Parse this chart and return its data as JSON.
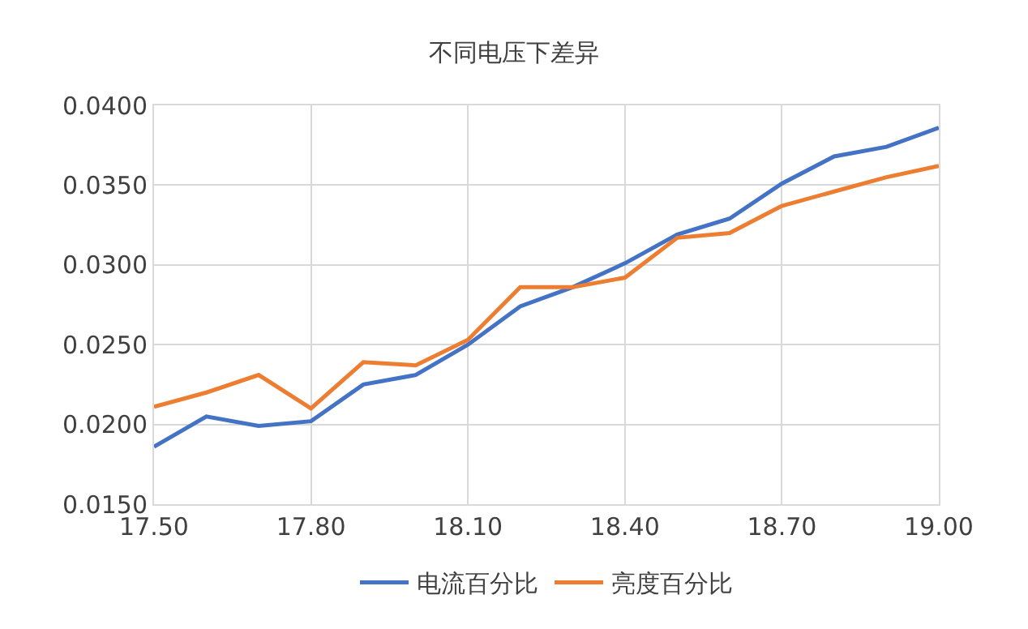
{
  "chart_data": {
    "type": "line",
    "title": "不同电压下差异",
    "x": [
      17.5,
      17.6,
      17.7,
      17.8,
      17.9,
      18.0,
      18.1,
      18.2,
      18.3,
      18.4,
      18.5,
      18.6,
      18.7,
      18.8,
      18.9,
      19.0
    ],
    "series": [
      {
        "name": "电流百分比",
        "color": "#4472c4",
        "values": [
          0.0186,
          0.0205,
          0.0199,
          0.0202,
          0.0225,
          0.0231,
          0.025,
          0.0274,
          0.0286,
          0.0301,
          0.0319,
          0.0329,
          0.0351,
          0.0368,
          0.0374,
          0.0386
        ]
      },
      {
        "name": "亮度百分比",
        "color": "#ed7d31",
        "values": [
          0.0211,
          0.022,
          0.0231,
          0.021,
          0.0239,
          0.0237,
          0.0253,
          0.0286,
          0.0286,
          0.0292,
          0.0317,
          0.032,
          0.0337,
          0.0346,
          0.0355,
          0.0362
        ]
      }
    ],
    "xlim": [
      17.5,
      19.0
    ],
    "xticks": [
      {
        "value": 17.5,
        "label": "17.50"
      },
      {
        "value": 17.8,
        "label": "17.80"
      },
      {
        "value": 18.1,
        "label": "18.10"
      },
      {
        "value": 18.4,
        "label": "18.40"
      },
      {
        "value": 18.7,
        "label": "18.70"
      },
      {
        "value": 19.0,
        "label": "19.00"
      }
    ],
    "ylim": [
      0.015,
      0.04
    ],
    "yticks": [
      {
        "value": 0.015,
        "label": "0.0150"
      },
      {
        "value": 0.02,
        "label": "0.0200"
      },
      {
        "value": 0.025,
        "label": "0.0250"
      },
      {
        "value": 0.03,
        "label": "0.0300"
      },
      {
        "value": 0.035,
        "label": "0.0350"
      },
      {
        "value": 0.04,
        "label": "0.0400"
      }
    ],
    "grid": true,
    "legend": "bottom",
    "marker": "none",
    "line_style": "solid"
  }
}
